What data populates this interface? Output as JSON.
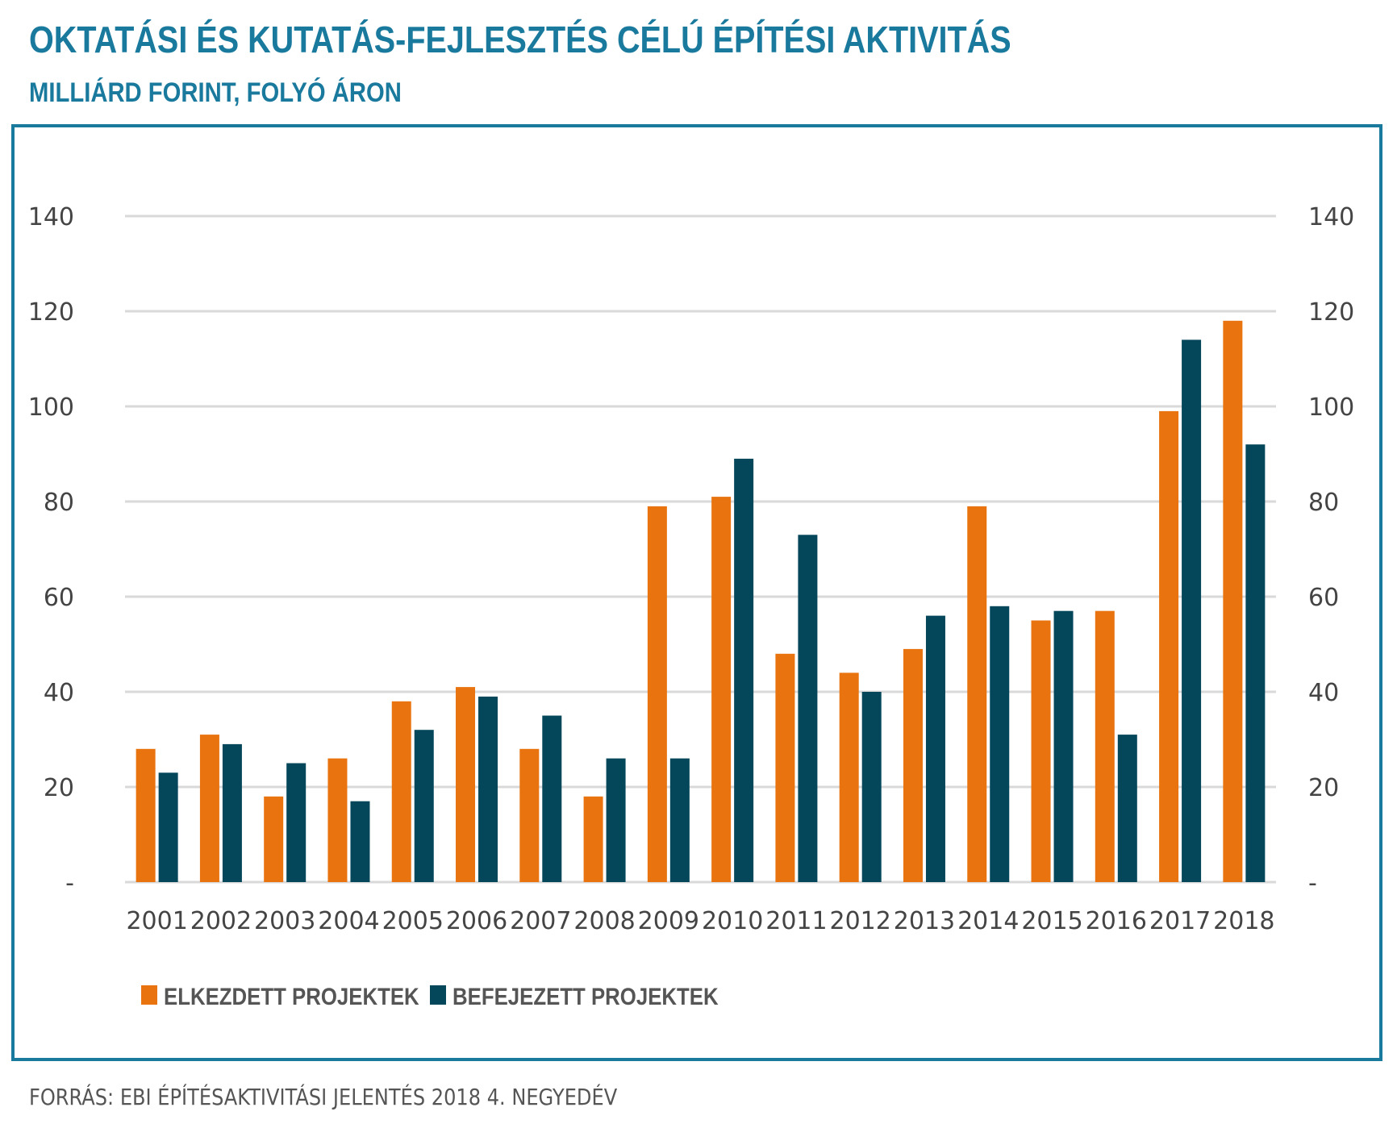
{
  "title": "OKTATÁSI ÉS KUTATÁS-FEJLESZTÉS CÉLÚ ÉPÍTÉSI AKTIVITÁS",
  "subtitle": "MILLIÁRD FORINT, FOLYÓ ÁRON",
  "source": "FORRÁS: EBI ÉPÍTÉSAKTIVITÁSI JELENTÉS 2018 4. NEGYEDÉV",
  "colors": {
    "accent": "#1a7a9e",
    "series1": "#e8730f",
    "series2": "#05475a",
    "grid": "#d9d9d9"
  },
  "chart_data": {
    "type": "bar",
    "categories": [
      "2001",
      "2002",
      "2003",
      "2004",
      "2005",
      "2006",
      "2007",
      "2008",
      "2009",
      "2010",
      "2011",
      "2012",
      "2013",
      "2014",
      "2015",
      "2016",
      "2017",
      "2018"
    ],
    "series": [
      {
        "name": "ELKEZDETT PROJEKTEK",
        "values": [
          28,
          31,
          18,
          26,
          38,
          41,
          28,
          18,
          79,
          81,
          48,
          44,
          49,
          79,
          55,
          57,
          99,
          118
        ]
      },
      {
        "name": "BEFEJEZETT PROJEKTEK",
        "values": [
          23,
          29,
          25,
          17,
          32,
          39,
          35,
          26,
          26,
          89,
          73,
          40,
          56,
          58,
          57,
          31,
          114,
          92
        ]
      }
    ],
    "ylim": [
      0,
      140
    ],
    "yticks": [
      "-",
      "20",
      "40",
      "60",
      "80",
      "100",
      "120",
      "140"
    ],
    "dual_axis_labels": true,
    "grid": true,
    "legend_position": "bottom-left"
  }
}
